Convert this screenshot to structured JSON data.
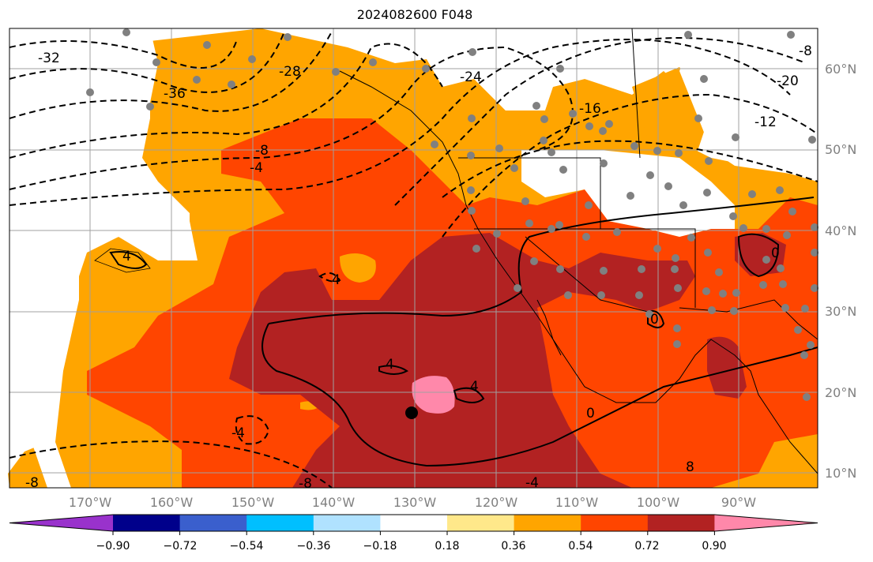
{
  "title": "2024082600 F048",
  "lat_labels": [
    "60°N",
    "50°N",
    "40°N",
    "30°N",
    "20°N",
    "10°N"
  ],
  "lon_labels": [
    "170°W",
    "160°W",
    "150°W",
    "140°W",
    "130°W",
    "120°W",
    "110°W",
    "100°W",
    "90°W"
  ],
  "colorbar": {
    "ticks": [
      "−0.90",
      "−0.72",
      "−0.54",
      "−0.36",
      "−0.18",
      "0.18",
      "0.36",
      "0.54",
      "0.72",
      "0.90"
    ],
    "colors": [
      "#9932cc",
      "#00008b",
      "#3a5fcd",
      "#00bfff",
      "#b0e2ff",
      "#ffffff",
      "#ffe88a",
      "#ffa500",
      "#ff4500",
      "#b22222",
      "#ff88aa"
    ]
  },
  "contour_labels": [
    "-32",
    "-36",
    "-28",
    "-24",
    "-16",
    "-20",
    "-12",
    "-8",
    "-4",
    "-8",
    "4",
    "8",
    "0",
    "4",
    "4",
    "4",
    "-4",
    "-4",
    "-8",
    "0",
    "0",
    "-8"
  ],
  "colors": {
    "ocean_low": "#ffa500",
    "ocean_mid": "#ff4500",
    "ocean_high": "#b22222",
    "ocean_peak": "#ff88aa",
    "grid": "#a0a0a0",
    "station": "#808080"
  }
}
